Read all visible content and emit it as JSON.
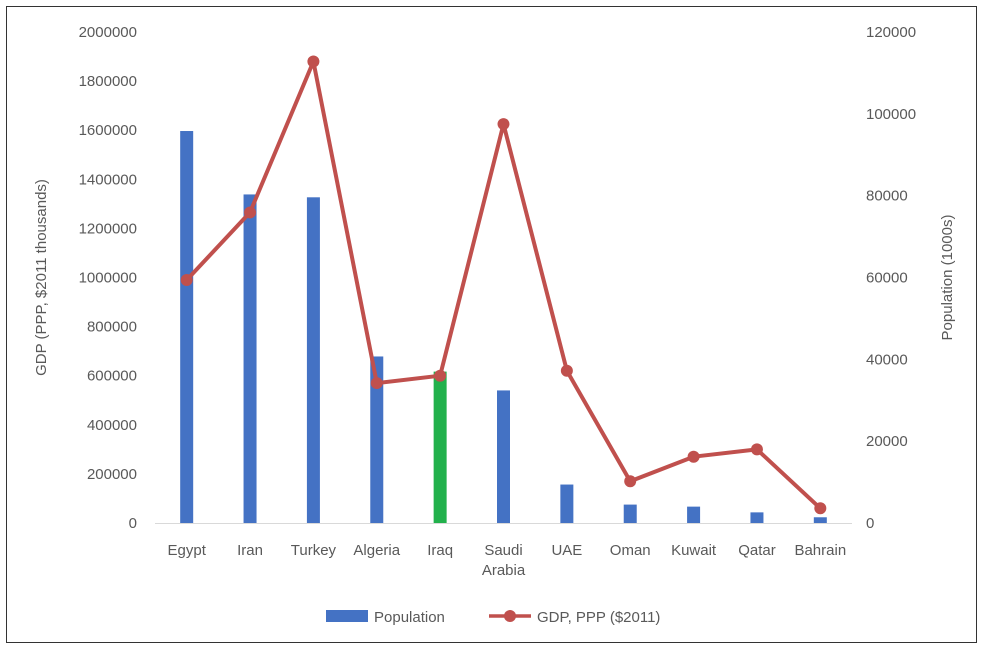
{
  "chart_data": {
    "type": "bar",
    "categories": [
      [
        "Egypt"
      ],
      [
        "Iran"
      ],
      [
        "Turkey"
      ],
      [
        "Algeria"
      ],
      [
        "Iraq"
      ],
      [
        "Saudi",
        "Arabia"
      ],
      [
        "UAE"
      ],
      [
        "Oman"
      ],
      [
        "Kuwait"
      ],
      [
        "Qatar"
      ],
      [
        "Bahrain"
      ]
    ],
    "y_left": {
      "label": "GDP (PPP, $2011 thousands)",
      "range": [
        0,
        2000000
      ],
      "ticks": [
        0,
        200000,
        400000,
        600000,
        800000,
        1000000,
        1200000,
        1400000,
        1600000,
        1800000,
        2000000
      ]
    },
    "y_right": {
      "label": "Population (1000s)",
      "range": [
        0,
        120000
      ],
      "ticks": [
        0,
        20000,
        40000,
        60000,
        80000,
        100000,
        120000
      ]
    },
    "series": [
      {
        "name": "Population",
        "kind": "bar",
        "axis": "right",
        "color": "#4472C4",
        "highlight_color": "#22B14C",
        "highlight_index": 4,
        "values": [
          95800,
          80300,
          79600,
          40700,
          37000,
          32400,
          9400,
          4500,
          4000,
          2600,
          1400
        ]
      },
      {
        "name": "GDP, PPP ($2011)",
        "kind": "line",
        "axis": "left",
        "color": "#C0504D",
        "values": [
          990000,
          1265000,
          1880000,
          570000,
          600000,
          1625000,
          620000,
          170000,
          270000,
          300000,
          60000
        ]
      }
    ],
    "legend_position": "bottom",
    "grid": false
  }
}
